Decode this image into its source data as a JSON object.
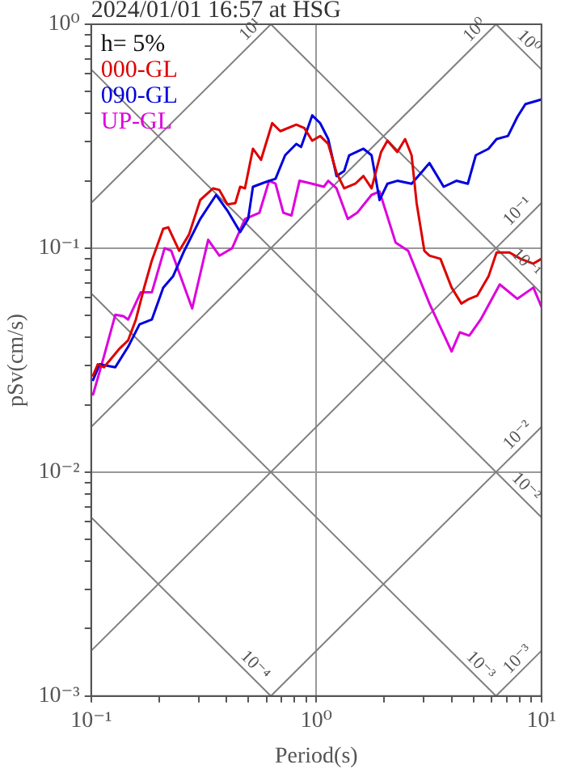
{
  "chart_data": {
    "type": "line",
    "title": "2024/01/01 16:57 at HSG",
    "xlabel": "Period(s)",
    "ylabel": "pSv(cm/s)",
    "legend_title": "h= 5%",
    "legend": "top left",
    "log": "xy",
    "grid": true,
    "marker": "none",
    "line_style": "solid",
    "xlim": [
      0.1,
      10
    ],
    "ylim": [
      0.001,
      1
    ],
    "xticks": [
      {
        "value": 0.1,
        "label": "10⁻¹"
      },
      {
        "value": 0.2,
        "label": null
      },
      {
        "value": 0.3,
        "label": null
      },
      {
        "value": 0.4,
        "label": null
      },
      {
        "value": 0.5,
        "label": null
      },
      {
        "value": 0.6,
        "label": null
      },
      {
        "value": 0.7,
        "label": null
      },
      {
        "value": 0.8,
        "label": null
      },
      {
        "value": 0.9,
        "label": null
      },
      {
        "value": 1,
        "label": "10⁰"
      },
      {
        "value": 2,
        "label": null
      },
      {
        "value": 3,
        "label": null
      },
      {
        "value": 4,
        "label": null
      },
      {
        "value": 5,
        "label": null
      },
      {
        "value": 6,
        "label": null
      },
      {
        "value": 7,
        "label": null
      },
      {
        "value": 8,
        "label": null
      },
      {
        "value": 9,
        "label": null
      },
      {
        "value": 10,
        "label": "10¹"
      }
    ],
    "yticks": [
      {
        "value": 0.001,
        "label": "10⁻³"
      },
      {
        "value": 0.002,
        "label": null
      },
      {
        "value": 0.003,
        "label": null
      },
      {
        "value": 0.004,
        "label": null
      },
      {
        "value": 0.005,
        "label": null
      },
      {
        "value": 0.006,
        "label": null
      },
      {
        "value": 0.007,
        "label": null
      },
      {
        "value": 0.008,
        "label": null
      },
      {
        "value": 0.009,
        "label": null
      },
      {
        "value": 0.01,
        "label": "10⁻²"
      },
      {
        "value": 0.02,
        "label": null
      },
      {
        "value": 0.03,
        "label": null
      },
      {
        "value": 0.04,
        "label": null
      },
      {
        "value": 0.05,
        "label": null
      },
      {
        "value": 0.06,
        "label": null
      },
      {
        "value": 0.07,
        "label": null
      },
      {
        "value": 0.08,
        "label": null
      },
      {
        "value": 0.09,
        "label": null
      },
      {
        "value": 0.1,
        "label": "10⁻¹"
      },
      {
        "value": 0.2,
        "label": null
      },
      {
        "value": 0.3,
        "label": null
      },
      {
        "value": 0.4,
        "label": null
      },
      {
        "value": 0.5,
        "label": null
      },
      {
        "value": 0.6,
        "label": null
      },
      {
        "value": 0.7,
        "label": null
      },
      {
        "value": 0.8,
        "label": null
      },
      {
        "value": 0.9,
        "label": null
      },
      {
        "value": 1,
        "label": "10⁰"
      }
    ],
    "series": [
      {
        "name": "000-GL",
        "color": "#dd0000",
        "type": "line",
        "x": [
          0.102,
          0.107,
          0.114,
          0.134,
          0.146,
          0.158,
          0.172,
          0.186,
          0.209,
          0.22,
          0.246,
          0.272,
          0.305,
          0.348,
          0.371,
          0.403,
          0.437,
          0.459,
          0.482,
          0.523,
          0.568,
          0.637,
          0.692,
          0.815,
          0.885,
          0.959,
          1.04,
          1.13,
          1.23,
          1.33,
          1.49,
          1.62,
          1.76,
          1.94,
          2.07,
          2.29,
          2.48,
          2.65,
          2.79,
          3.02,
          3.18,
          3.56,
          3.99,
          4.41,
          4.78,
          5.19,
          5.82,
          6.32,
          7.21,
          8.08,
          9.21,
          10
        ],
        "values": [
          0.027,
          0.0303,
          0.0294,
          0.0357,
          0.0388,
          0.048,
          0.0667,
          0.0881,
          0.122,
          0.124,
          0.0973,
          0.115,
          0.164,
          0.185,
          0.182,
          0.157,
          0.159,
          0.188,
          0.185,
          0.278,
          0.248,
          0.362,
          0.333,
          0.356,
          0.344,
          0.302,
          0.317,
          0.292,
          0.217,
          0.185,
          0.194,
          0.21,
          0.185,
          0.269,
          0.302,
          0.269,
          0.307,
          0.26,
          0.159,
          0.0973,
          0.0926,
          0.0896,
          0.0667,
          0.0566,
          0.0594,
          0.0614,
          0.0748,
          0.0957,
          0.0957,
          0.0896,
          0.0853,
          0.0896
        ]
      },
      {
        "name": "090-GL",
        "color": "#0000dd",
        "type": "line",
        "x": [
          0.102,
          0.109,
          0.128,
          0.146,
          0.164,
          0.186,
          0.209,
          0.231,
          0.259,
          0.305,
          0.359,
          0.403,
          0.459,
          0.498,
          0.523,
          0.568,
          0.617,
          0.659,
          0.727,
          0.815,
          0.856,
          0.959,
          1.04,
          1.13,
          1.23,
          1.33,
          1.4,
          1.62,
          1.76,
          1.91,
          2.07,
          2.29,
          2.65,
          2.92,
          3.18,
          3.68,
          4.19,
          4.71,
          5.11,
          5.82,
          6.32,
          7.1,
          7.82,
          8.49,
          9.52,
          10
        ],
        "values": [
          0.0258,
          0.0303,
          0.0294,
          0.0363,
          0.0457,
          0.048,
          0.0667,
          0.0748,
          0.0973,
          0.135,
          0.173,
          0.147,
          0.118,
          0.135,
          0.188,
          0.194,
          0.2,
          0.204,
          0.26,
          0.292,
          0.283,
          0.392,
          0.362,
          0.307,
          0.21,
          0.221,
          0.26,
          0.278,
          0.26,
          0.164,
          0.194,
          0.2,
          0.194,
          0.217,
          0.24,
          0.188,
          0.2,
          0.194,
          0.26,
          0.278,
          0.307,
          0.317,
          0.386,
          0.44,
          0.455,
          0.462
        ]
      },
      {
        "name": "UP-GL",
        "color": "#dd00dd",
        "type": "line",
        "x": [
          0.102,
          0.114,
          0.128,
          0.139,
          0.146,
          0.166,
          0.186,
          0.212,
          0.227,
          0.281,
          0.331,
          0.371,
          0.423,
          0.482,
          0.559,
          0.617,
          0.659,
          0.714,
          0.776,
          0.842,
          0.959,
          1.08,
          1.13,
          1.23,
          1.38,
          1.52,
          1.76,
          1.91,
          2.25,
          2.56,
          3.18,
          3.99,
          4.34,
          4.78,
          5.37,
          6.53,
          7.82,
          9.21,
          10
        ],
        "values": [
          0.0222,
          0.0329,
          0.0504,
          0.0497,
          0.048,
          0.0635,
          0.0635,
          0.1,
          0.0973,
          0.0538,
          0.109,
          0.0926,
          0.1,
          0.135,
          0.144,
          0.2,
          0.194,
          0.144,
          0.14,
          0.2,
          0.194,
          0.188,
          0.2,
          0.185,
          0.135,
          0.144,
          0.173,
          0.179,
          0.106,
          0.0973,
          0.0566,
          0.0346,
          0.0421,
          0.0407,
          0.048,
          0.0689,
          0.0594,
          0.0667,
          0.0547
        ]
      },
      {
        "color": "#808080",
        "type": "line",
        "x": [
          0.1,
          0.6283
        ],
        "values": [
          0.1592,
          1
        ]
      },
      {
        "color": "#808080",
        "type": "line",
        "x": [
          0.1,
          6.283
        ],
        "values": [
          0.01592,
          1
        ]
      },
      {
        "color": "#808080",
        "type": "line",
        "x": [
          0.1,
          10
        ],
        "values": [
          0.001592,
          0.1592
        ]
      },
      {
        "color": "#808080",
        "type": "line",
        "x": [
          0.6283,
          10
        ],
        "values": [
          0.001,
          0.01592
        ]
      },
      {
        "color": "#808080",
        "type": "line",
        "x": [
          6.283,
          10
        ],
        "values": [
          0.001,
          0.001592
        ]
      },
      {
        "color": "#808080",
        "type": "line",
        "x": [
          6.283,
          10
        ],
        "values": [
          1,
          0.6283
        ]
      },
      {
        "color": "#808080",
        "type": "line",
        "x": [
          0.6283,
          10
        ],
        "values": [
          1,
          0.06283
        ]
      },
      {
        "color": "#808080",
        "type": "line",
        "x": [
          0.1,
          10
        ],
        "values": [
          0.6283,
          0.006283
        ]
      },
      {
        "color": "#808080",
        "type": "line",
        "x": [
          0.1,
          6.283
        ],
        "values": [
          0.06283,
          0.001
        ]
      },
      {
        "color": "#808080",
        "type": "line",
        "x": [
          0.1,
          0.6283
        ],
        "values": [
          0.006283,
          0.001
        ]
      }
    ],
    "annotations": [
      {
        "text": "10¹",
        "x": 0.6283,
        "y": 1
      },
      {
        "text": "10⁰",
        "x": 6.283,
        "y": 1
      },
      {
        "text": "10⁻¹",
        "x": 10,
        "y": 0.1592
      },
      {
        "text": "10⁻²",
        "x": 10,
        "y": 0.01592
      },
      {
        "text": "10⁻³",
        "x": 10,
        "y": 0.001592
      },
      {
        "text": "10⁰",
        "x": 10,
        "y": 0.6283
      },
      {
        "text": "10⁻¹",
        "x": 10,
        "y": 0.06283
      },
      {
        "text": "10⁻²",
        "x": 10,
        "y": 0.006283
      },
      {
        "text": "10⁻³",
        "x": 6.283,
        "y": 0.001
      },
      {
        "text": "10⁻⁴",
        "x": 0.6283,
        "y": 0.001
      }
    ]
  }
}
